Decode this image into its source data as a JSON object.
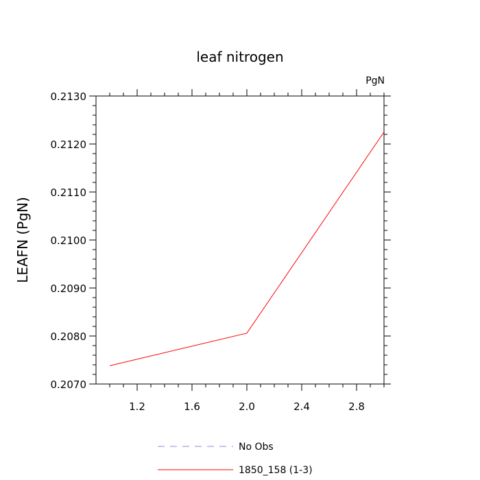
{
  "chart_data": {
    "type": "line",
    "title": "leaf nitrogen",
    "units_label": "PgN",
    "xlabel": "",
    "ylabel": "LEAFN  (PgN)",
    "xlim": [
      0.9,
      3.0
    ],
    "ylim": [
      0.207,
      0.213
    ],
    "x_ticks": [
      1.2,
      1.6,
      2.0,
      2.4,
      2.8
    ],
    "x_tick_labels": [
      "1.2",
      "1.6",
      "2.0",
      "2.4",
      "2.8"
    ],
    "y_ticks": [
      0.207,
      0.208,
      0.209,
      0.21,
      0.211,
      0.212,
      0.213
    ],
    "y_tick_labels": [
      "0.2070",
      "0.2080",
      "0.2090",
      "0.2100",
      "0.2110",
      "0.2120",
      "0.2130"
    ],
    "grid": false,
    "legend_position": "bottom",
    "series": [
      {
        "name": "1850_158 (1-3)",
        "color": "#ff0000",
        "style": "solid",
        "x": [
          1,
          2,
          3
        ],
        "y": [
          0.20738,
          0.20806,
          0.21225
        ]
      }
    ],
    "legend": [
      {
        "label": "No Obs",
        "color": "#8a8ae6",
        "style": "dashed"
      },
      {
        "label": "1850_158 (1-3)",
        "color": "#ff0000",
        "style": "solid"
      }
    ]
  }
}
